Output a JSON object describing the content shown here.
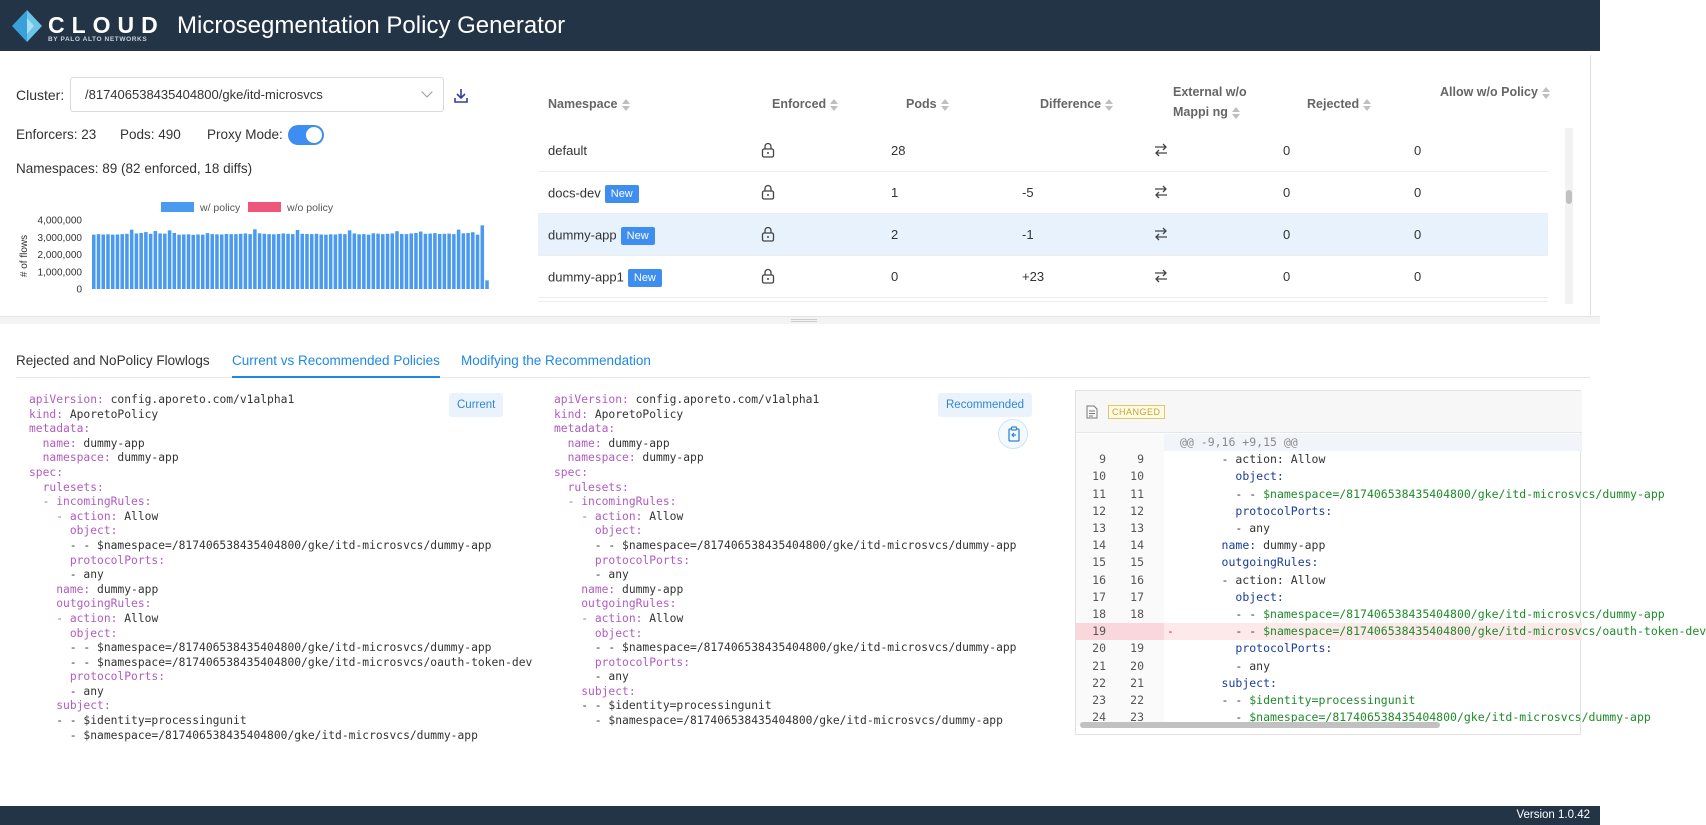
{
  "header": {
    "brand": "CLOUD",
    "brand_sub": "BY PALO ALTO NETWORKS",
    "title": "Microsegmentation Policy Generator"
  },
  "cluster": {
    "label": "Cluster:",
    "value": "/817406538435404800/gke/itd-microsvcs"
  },
  "stats": {
    "enforcers": "Enforcers: 23",
    "pods": "Pods: 490",
    "proxy_mode_label": "Proxy Mode:",
    "proxy_mode_on": true,
    "namespaces": "Namespaces: 89 (82 enforced, 18 diffs)"
  },
  "chart_data": {
    "type": "bar",
    "series": [
      {
        "name": "w/ policy",
        "color": "#4a9af0",
        "values": [
          3150000,
          3180000,
          3160000,
          3170000,
          3150000,
          3160000,
          3180000,
          3200000,
          3440000,
          3220000,
          3250000,
          3300000,
          3200000,
          3360000,
          3220000,
          3210000,
          3400000,
          3250000,
          3150000,
          3160000,
          3170000,
          3140000,
          3160000,
          3150000,
          3240000,
          3180000,
          3170000,
          3160000,
          3190000,
          3180000,
          3180000,
          3200000,
          3220000,
          3180000,
          3460000,
          3230000,
          3200000,
          3180000,
          3170000,
          3190000,
          3220000,
          3200000,
          3180000,
          3420000,
          3200000,
          3190000,
          3180000,
          3200000,
          3160000,
          3150000,
          3170000,
          3160000,
          3200000,
          3180000,
          3400000,
          3220000,
          3170000,
          3180000,
          3150000,
          3230000,
          3210000,
          3180000,
          3200000,
          3220000,
          3350000,
          3190000,
          3180000,
          3220000,
          3250000,
          3330000,
          3200000,
          3210000,
          3240000,
          3190000,
          3200000,
          3210000,
          3180000,
          3440000,
          3230000,
          3250000,
          3290000,
          3150000,
          3690000,
          500000
        ]
      },
      {
        "name": "w/o policy",
        "color": "#f0557a",
        "values": []
      }
    ],
    "ylabel": "# of flows",
    "ylim": [
      0,
      4000000
    ],
    "yticks": [
      "4,000,000",
      "3,000,000",
      "2,000,000",
      "1,000,000",
      "0"
    ],
    "legend": "top"
  },
  "table": {
    "headers": [
      "Namespace",
      "Enforced",
      "Pods",
      "Difference",
      "External w/o Mappi ng",
      "Rejected",
      "Allow w/o Policy"
    ],
    "rows": [
      {
        "namespace": "default",
        "new": "",
        "pods": "28",
        "difference": "",
        "rejected": "0",
        "allow": "0",
        "selected": false
      },
      {
        "namespace": "docs-dev",
        "new": "New",
        "pods": "1",
        "difference": "-5",
        "rejected": "0",
        "allow": "0",
        "selected": false
      },
      {
        "namespace": "dummy-app",
        "new": "New",
        "pods": "2",
        "difference": "-1",
        "rejected": "0",
        "allow": "0",
        "selected": true
      },
      {
        "namespace": "dummy-app1",
        "new": "New",
        "pods": "0",
        "difference": "+23",
        "rejected": "0",
        "allow": "0",
        "selected": false
      }
    ]
  },
  "tabs": [
    "Rejected and NoPolicy Flowlogs",
    "Current vs Recommended Policies",
    "Modifying the Recommendation"
  ],
  "current": {
    "tag": "Current",
    "lines": [
      [
        [
          "k",
          "apiVersion:"
        ],
        [
          "v",
          " config.aporeto.com/v1alpha1"
        ]
      ],
      [
        [
          "k",
          "kind:"
        ],
        [
          "v",
          " AporetoPolicy"
        ]
      ],
      [
        [
          "k",
          "metadata:"
        ]
      ],
      [
        [
          "v",
          "  "
        ],
        [
          "k",
          "name:"
        ],
        [
          "v",
          " dummy-app"
        ]
      ],
      [
        [
          "v",
          "  "
        ],
        [
          "k",
          "namespace:"
        ],
        [
          "v",
          " dummy-app"
        ]
      ],
      [
        [
          "k",
          "spec:"
        ]
      ],
      [
        [
          "v",
          "  "
        ],
        [
          "k",
          "rulesets:"
        ]
      ],
      [
        [
          "v",
          "  "
        ],
        [
          "k",
          "- incomingRules:"
        ]
      ],
      [
        [
          "v",
          "    "
        ],
        [
          "k",
          "- action:"
        ],
        [
          "v",
          " Allow"
        ]
      ],
      [
        [
          "v",
          "      "
        ],
        [
          "k",
          "object:"
        ]
      ],
      [
        [
          "v",
          "      - - $namespace=/817406538435404800/gke/itd-microsvcs/dummy-app"
        ]
      ],
      [
        [
          "v",
          "      "
        ],
        [
          "k",
          "protocolPorts:"
        ]
      ],
      [
        [
          "v",
          "      - any"
        ]
      ],
      [
        [
          "v",
          "    "
        ],
        [
          "k",
          "name:"
        ],
        [
          "v",
          " dummy-app"
        ]
      ],
      [
        [
          "v",
          "    "
        ],
        [
          "k",
          "outgoingRules:"
        ]
      ],
      [
        [
          "v",
          "    "
        ],
        [
          "k",
          "- action:"
        ],
        [
          "v",
          " Allow"
        ]
      ],
      [
        [
          "v",
          "      "
        ],
        [
          "k",
          "object:"
        ]
      ],
      [
        [
          "v",
          "      - - $namespace=/817406538435404800/gke/itd-microsvcs/dummy-app"
        ]
      ],
      [
        [
          "v",
          "      - - $namespace=/817406538435404800/gke/itd-microsvcs/oauth-token-dev"
        ]
      ],
      [
        [
          "v",
          "      "
        ],
        [
          "k",
          "protocolPorts:"
        ]
      ],
      [
        [
          "v",
          "      - any"
        ]
      ],
      [
        [
          "v",
          "    "
        ],
        [
          "k",
          "subject:"
        ]
      ],
      [
        [
          "v",
          "    - - $identity=processingunit"
        ]
      ],
      [
        [
          "v",
          "      - $namespace=/817406538435404800/gke/itd-microsvcs/dummy-app"
        ]
      ]
    ]
  },
  "recommended": {
    "tag": "Recommended",
    "lines": [
      [
        [
          "k",
          "apiVersion:"
        ],
        [
          "v",
          " config.aporeto.com/v1alpha1"
        ]
      ],
      [
        [
          "k",
          "kind:"
        ],
        [
          "v",
          " AporetoPolicy"
        ]
      ],
      [
        [
          "k",
          "metadata:"
        ]
      ],
      [
        [
          "v",
          "  "
        ],
        [
          "k",
          "name:"
        ],
        [
          "v",
          " dummy-app"
        ]
      ],
      [
        [
          "v",
          "  "
        ],
        [
          "k",
          "namespace:"
        ],
        [
          "v",
          " dummy-app"
        ]
      ],
      [
        [
          "k",
          "spec:"
        ]
      ],
      [
        [
          "v",
          "  "
        ],
        [
          "k",
          "rulesets:"
        ]
      ],
      [
        [
          "v",
          "  "
        ],
        [
          "k",
          "- incomingRules:"
        ]
      ],
      [
        [
          "v",
          "    "
        ],
        [
          "k",
          "- action:"
        ],
        [
          "v",
          " Allow"
        ]
      ],
      [
        [
          "v",
          "      "
        ],
        [
          "k",
          "object:"
        ]
      ],
      [
        [
          "v",
          "      - - $namespace=/817406538435404800/gke/itd-microsvcs/dummy-app"
        ]
      ],
      [
        [
          "v",
          "      "
        ],
        [
          "k",
          "protocolPorts:"
        ]
      ],
      [
        [
          "v",
          "      - any"
        ]
      ],
      [
        [
          "v",
          "    "
        ],
        [
          "k",
          "name:"
        ],
        [
          "v",
          " dummy-app"
        ]
      ],
      [
        [
          "v",
          "    "
        ],
        [
          "k",
          "outgoingRules:"
        ]
      ],
      [
        [
          "v",
          "    "
        ],
        [
          "k",
          "- action:"
        ],
        [
          "v",
          " Allow"
        ]
      ],
      [
        [
          "v",
          "      "
        ],
        [
          "k",
          "object:"
        ]
      ],
      [
        [
          "v",
          "      - - $namespace=/817406538435404800/gke/itd-microsvcs/dummy-app"
        ]
      ],
      [
        [
          "v",
          "      "
        ],
        [
          "k",
          "protocolPorts:"
        ]
      ],
      [
        [
          "v",
          "      - any"
        ]
      ],
      [
        [
          "v",
          "    "
        ],
        [
          "k",
          "subject:"
        ]
      ],
      [
        [
          "v",
          "    - - $identity=processingunit"
        ]
      ],
      [
        [
          "v",
          "      - $namespace=/817406538435404800/gke/itd-microsvcs/dummy-app"
        ]
      ]
    ]
  },
  "diff": {
    "badge": "CHANGED",
    "hunk": "@@ -9,16 +9,15 @@",
    "rows": [
      {
        "o": "9",
        "n": "9",
        "t": [
          [
            "v",
            "      - action: Allow"
          ]
        ]
      },
      {
        "o": "10",
        "n": "10",
        "t": [
          [
            "v",
            "        "
          ],
          [
            "b",
            "object:"
          ]
        ]
      },
      {
        "o": "11",
        "n": "11",
        "t": [
          [
            "v",
            "        - - "
          ],
          [
            "g",
            "$namespace=/817406538435404800/gke/itd-microsvcs/dummy-app"
          ]
        ]
      },
      {
        "o": "12",
        "n": "12",
        "t": [
          [
            "v",
            "        "
          ],
          [
            "b",
            "protocolPorts:"
          ]
        ]
      },
      {
        "o": "13",
        "n": "13",
        "t": [
          [
            "v",
            "        - any"
          ]
        ]
      },
      {
        "o": "14",
        "n": "14",
        "t": [
          [
            "v",
            "      "
          ],
          [
            "b",
            "name:"
          ],
          [
            "v",
            " dummy-app"
          ]
        ]
      },
      {
        "o": "15",
        "n": "15",
        "t": [
          [
            "v",
            "      "
          ],
          [
            "b",
            "outgoingRules:"
          ]
        ]
      },
      {
        "o": "16",
        "n": "16",
        "t": [
          [
            "v",
            "      - action: Allow"
          ]
        ]
      },
      {
        "o": "17",
        "n": "17",
        "t": [
          [
            "v",
            "        "
          ],
          [
            "b",
            "object:"
          ]
        ]
      },
      {
        "o": "18",
        "n": "18",
        "t": [
          [
            "v",
            "        - - "
          ],
          [
            "g",
            "$namespace=/817406538435404800/gke/itd-microsvcs/dummy-app"
          ]
        ]
      },
      {
        "o": "19",
        "n": "",
        "del": true,
        "t": [
          [
            "v",
            "        - - "
          ],
          [
            "g",
            "$namespace=/817406538435404800/gke/itd-microsvcs/oauth-token-dev"
          ]
        ]
      },
      {
        "o": "20",
        "n": "19",
        "t": [
          [
            "v",
            "        "
          ],
          [
            "b",
            "protocolPorts:"
          ]
        ]
      },
      {
        "o": "21",
        "n": "20",
        "t": [
          [
            "v",
            "        - any"
          ]
        ]
      },
      {
        "o": "22",
        "n": "21",
        "t": [
          [
            "v",
            "      "
          ],
          [
            "b",
            "subject:"
          ]
        ]
      },
      {
        "o": "23",
        "n": "22",
        "t": [
          [
            "v",
            "      - - "
          ],
          [
            "g",
            "$identity=processingunit"
          ]
        ]
      },
      {
        "o": "24",
        "n": "23",
        "t": [
          [
            "v",
            "        - "
          ],
          [
            "g",
            "$namespace=/817406538435404800/gke/itd-microsvcs/dummy-app"
          ]
        ]
      }
    ]
  },
  "footer": {
    "version": "Version 1.0.42"
  }
}
